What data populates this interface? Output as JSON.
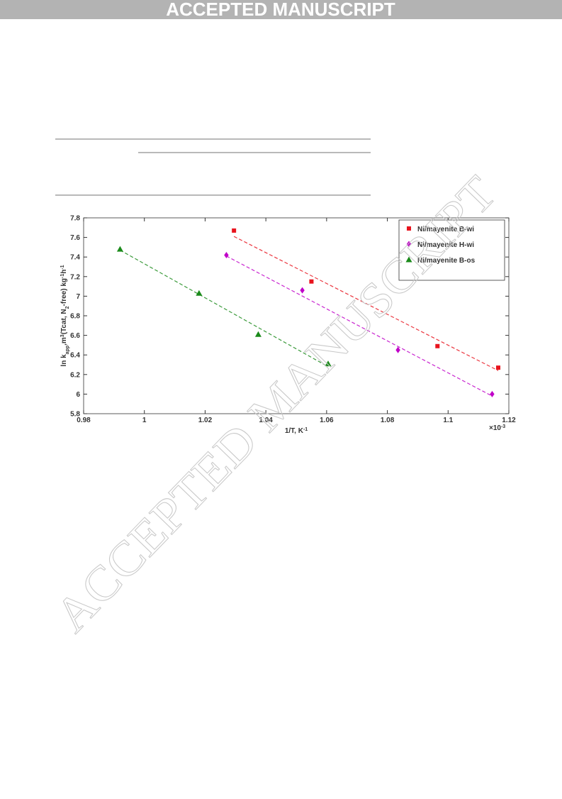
{
  "header": "ACCEPTED MANUSCRIPT",
  "watermark": "ACCEPTED MANUSCRIPT",
  "chart_data": {
    "type": "scatter",
    "xlabel": [
      {
        "text": "1/T, K"
      },
      {
        "text": "-1",
        "sup": true
      }
    ],
    "ylabel": [
      {
        "text": "ln k"
      },
      {
        "text": "app",
        "sub": true
      },
      {
        "text": ",m"
      },
      {
        "text": "3",
        "sup": true
      },
      {
        "text": "(Tcat, N"
      },
      {
        "text": "2",
        "sub": true
      },
      {
        "text": "-free) kg"
      },
      {
        "text": "-1",
        "sup": true
      },
      {
        "text": "h"
      },
      {
        "text": "-1",
        "sup": true
      }
    ],
    "x_multiplier": {
      "base": "×10",
      "exponent": "-3"
    },
    "xlim": [
      0.98,
      1.12
    ],
    "xticks": [
      0.98,
      1,
      1.02,
      1.04,
      1.06,
      1.08,
      1.1,
      1.12
    ],
    "ylim": [
      5.8,
      7.8
    ],
    "yticks": [
      5.8,
      6,
      6.2,
      6.4,
      6.6,
      6.8,
      7,
      7.2,
      7.4,
      7.6,
      7.8
    ],
    "legend": "upper right",
    "series": [
      {
        "name": "Ni/mayenite B-wi",
        "color": "#e8141e",
        "marker": "square",
        "x": [
          1.0295,
          1.055,
          1.0965,
          1.1165
        ],
        "values": [
          7.67,
          7.15,
          6.49,
          6.27
        ],
        "fit_x": [
          1.0295,
          1.1165
        ],
        "fit_values": [
          7.61,
          6.24
        ]
      },
      {
        "name": "Ni/mayenite H-wi",
        "color": "#c000c8",
        "marker": "diamond",
        "x": [
          1.027,
          1.052,
          1.0835,
          1.1145
        ],
        "values": [
          7.42,
          7.06,
          6.45,
          6.0
        ],
        "fit_x": [
          1.027,
          1.1145
        ],
        "fit_values": [
          7.41,
          5.98
        ]
      },
      {
        "name": "Ni/mayenite B-os",
        "color": "#1a8a1a",
        "marker": "triangle",
        "x": [
          0.992,
          1.018,
          1.0375,
          1.0605
        ],
        "values": [
          7.48,
          7.03,
          6.61,
          6.31
        ],
        "fit_x": [
          0.992,
          1.0605
        ],
        "fit_values": [
          7.47,
          6.28
        ]
      }
    ]
  }
}
